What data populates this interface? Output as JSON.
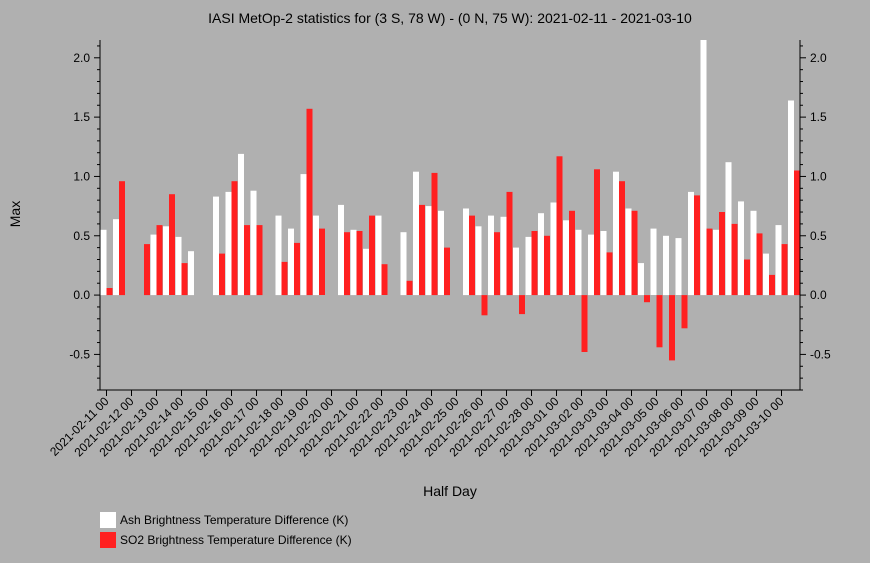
{
  "chart_data": {
    "type": "bar",
    "title": "IASI MetOp-2 statistics for (3 S, 78 W) - (0 N, 75 W): 2021-02-11 - 2021-03-10",
    "xlabel": "Half Day",
    "ylabel": "Max",
    "ylim": [
      -0.8,
      2.15
    ],
    "yticks": [
      -0.5,
      0.0,
      0.5,
      1.0,
      1.5,
      2.0
    ],
    "ytick_labels": [
      "-0.5",
      "0.0",
      "0.5",
      "1.0",
      "1.5",
      "2.0"
    ],
    "grid": false,
    "legend_position": "bottom-left",
    "n_slots": 56,
    "x_tick_labels": [
      "2021-02-11 00",
      "2021-02-12 00",
      "2021-02-13 00",
      "2021-02-14 00",
      "2021-02-15 00",
      "2021-02-16 00",
      "2021-02-17 00",
      "2021-02-18 00",
      "2021-02-19 00",
      "2021-02-20 00",
      "2021-02-21 00",
      "2021-02-22 00",
      "2021-02-23 00",
      "2021-02-24 00",
      "2021-02-25 00",
      "2021-02-26 00",
      "2021-02-27 00",
      "2021-02-28 00",
      "2021-03-01 00",
      "2021-03-02 00",
      "2021-03-03 00",
      "2021-03-04 00",
      "2021-03-05 00",
      "2021-03-06 00",
      "2021-03-07 00",
      "2021-03-08 00",
      "2021-03-09 00",
      "2021-03-10 00"
    ],
    "series": [
      {
        "name": "Ash Brightness Temperature Difference (K)",
        "color": "#ffffff",
        "values": [
          0.55,
          0.64,
          null,
          null,
          0.51,
          0.58,
          0.49,
          0.37,
          null,
          0.83,
          0.87,
          1.19,
          0.88,
          null,
          0.67,
          0.56,
          1.02,
          0.67,
          null,
          0.76,
          0.55,
          0.39,
          0.67,
          null,
          0.53,
          1.04,
          0.75,
          0.71,
          null,
          0.73,
          0.58,
          0.67,
          0.66,
          0.4,
          0.49,
          0.69,
          0.78,
          0.63,
          0.55,
          0.51,
          0.54,
          1.04,
          0.73,
          0.27,
          0.56,
          0.5,
          0.48,
          0.87,
          2.15,
          0.55,
          1.12,
          0.79,
          0.71,
          0.35,
          0.59,
          1.64
        ]
      },
      {
        "name": "SO2 Brightness Temperature Difference (K)",
        "color": "#ff2020",
        "values": [
          0.06,
          0.96,
          null,
          0.43,
          0.59,
          0.85,
          0.27,
          null,
          null,
          0.35,
          0.96,
          0.59,
          0.59,
          null,
          0.28,
          0.44,
          1.57,
          0.56,
          null,
          0.53,
          0.54,
          0.67,
          0.26,
          null,
          0.12,
          0.76,
          1.03,
          0.4,
          null,
          0.67,
          -0.17,
          0.53,
          0.87,
          -0.16,
          0.54,
          0.5,
          1.17,
          0.71,
          -0.48,
          1.06,
          0.36,
          0.96,
          0.71,
          -0.06,
          -0.44,
          -0.55,
          -0.28,
          0.84,
          0.56,
          0.7,
          0.6,
          0.3,
          0.52,
          0.17,
          0.43,
          0.71
        ]
      }
    ],
    "extra_ash_bar": {
      "slot": 56,
      "value": 0.28,
      "color": "#ffffff"
    },
    "extra_so2_bar": {
      "slot": 56,
      "value": 1.05,
      "color": "#ff2020"
    },
    "legend": [
      {
        "label": "Ash Brightness Temperature Difference (K)",
        "color": "#ffffff"
      },
      {
        "label": "SO2 Brightness Temperature Difference (K)",
        "color": "#ff2020"
      }
    ]
  }
}
